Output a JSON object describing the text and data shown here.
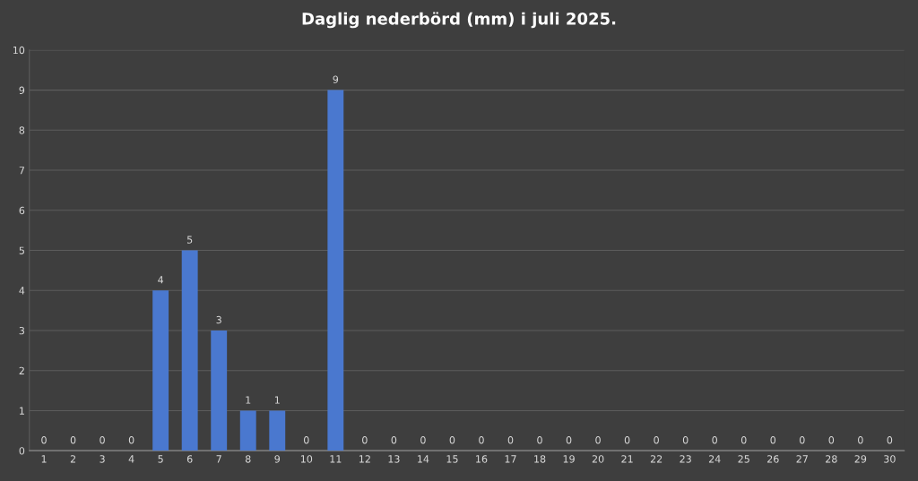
{
  "chart_data": {
    "type": "bar",
    "title": "Daglig nederbörd (mm) i juli 2025.",
    "categories": [
      "1",
      "2",
      "3",
      "4",
      "5",
      "6",
      "7",
      "8",
      "9",
      "10",
      "11",
      "12",
      "13",
      "14",
      "15",
      "16",
      "17",
      "18",
      "19",
      "20",
      "21",
      "22",
      "23",
      "24",
      "25",
      "26",
      "27",
      "28",
      "29",
      "30"
    ],
    "values": [
      0,
      0,
      0,
      0,
      4,
      5,
      3,
      1,
      1,
      0,
      9,
      0,
      0,
      0,
      0,
      0,
      0,
      0,
      0,
      0,
      0,
      0,
      0,
      0,
      0,
      0,
      0,
      0,
      0,
      0
    ],
    "color": "#4a78cf",
    "ylim": [
      0,
      10
    ],
    "yticks": [
      0,
      1,
      2,
      3,
      4,
      5,
      6,
      7,
      8,
      9,
      10
    ],
    "grid": "y",
    "data_labels": true
  }
}
